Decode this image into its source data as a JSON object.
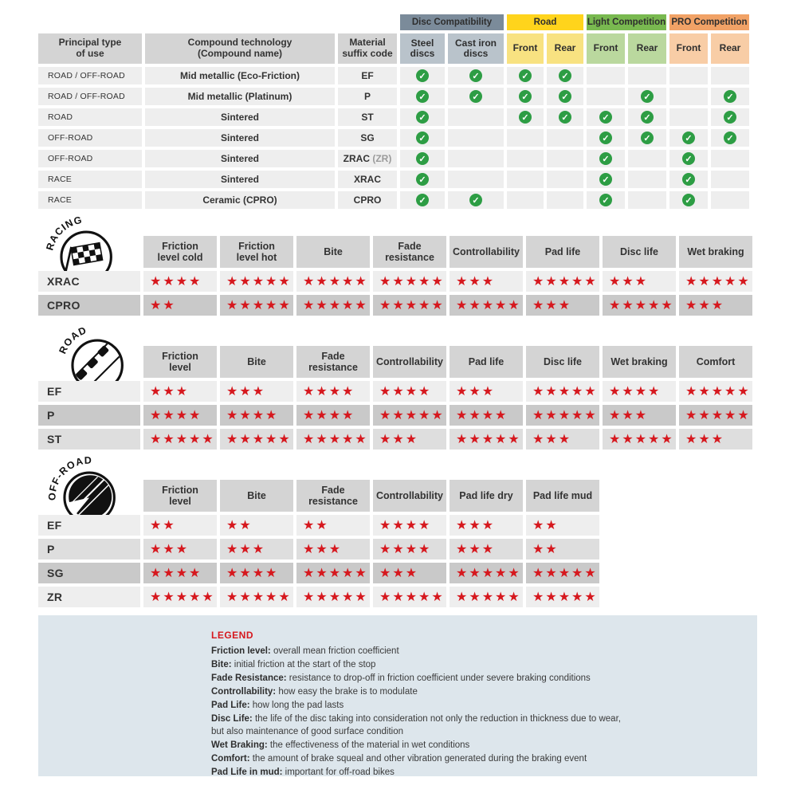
{
  "colors": {
    "check_green": "#2d9d44",
    "star_red": "#d6181e",
    "header_gray": "#d4d4d4",
    "legend_bg": "#dde6ec"
  },
  "compat_table": {
    "col_headers": [
      "Principal type\nof use",
      "Compound technology\n(Compound name)",
      "Material\nsuffix code"
    ],
    "groups": [
      {
        "label": "Disc Compatibility",
        "color": "#7b8b9a",
        "sub_color": "#b9c3cb",
        "cols": [
          "Steel\ndiscs",
          "Cast iron\ndiscs"
        ]
      },
      {
        "label": "Road",
        "color": "#ffd41c",
        "sub_color": "#f8e281",
        "cols": [
          "Front",
          "Rear"
        ]
      },
      {
        "label": "Light Competition",
        "color": "#79b950",
        "sub_color": "#bad89e",
        "cols": [
          "Front",
          "Rear"
        ]
      },
      {
        "label": "PRO Competition",
        "color": "#f1a266",
        "sub_color": "#f8cda6",
        "cols": [
          "Front",
          "Rear"
        ]
      }
    ],
    "rows": [
      {
        "use": "ROAD / OFF-ROAD",
        "compound": "Mid metallic (Eco-Friction)",
        "suffix": "EF",
        "suffix_note": "",
        "checks": [
          1,
          1,
          1,
          1,
          0,
          0,
          0,
          0
        ]
      },
      {
        "use": "ROAD / OFF-ROAD",
        "compound": "Mid metallic (Platinum)",
        "suffix": "P",
        "suffix_note": "",
        "checks": [
          1,
          1,
          1,
          1,
          0,
          1,
          0,
          1
        ]
      },
      {
        "use": "ROAD",
        "compound": "Sintered",
        "suffix": "ST",
        "suffix_note": "",
        "checks": [
          1,
          0,
          1,
          1,
          1,
          1,
          0,
          1
        ]
      },
      {
        "use": "OFF-ROAD",
        "compound": "Sintered",
        "suffix": "SG",
        "suffix_note": "",
        "checks": [
          1,
          0,
          0,
          0,
          1,
          1,
          1,
          1
        ]
      },
      {
        "use": "OFF-ROAD",
        "compound": "Sintered",
        "suffix": "ZRAC",
        "suffix_note": "(ZR)",
        "checks": [
          1,
          0,
          0,
          0,
          1,
          0,
          1,
          0
        ]
      },
      {
        "use": "RACE",
        "compound": "Sintered",
        "suffix": "XRAC",
        "suffix_note": "",
        "checks": [
          1,
          0,
          0,
          0,
          1,
          0,
          1,
          0
        ]
      },
      {
        "use": "RACE",
        "compound": "Ceramic (CPRO)",
        "suffix": "CPRO",
        "suffix_note": "",
        "checks": [
          1,
          1,
          0,
          0,
          1,
          0,
          1,
          0
        ]
      }
    ]
  },
  "sections": [
    {
      "id": "racing",
      "label": "RACING",
      "columns": [
        "Friction\nlevel cold",
        "Friction\nlevel hot",
        "Bite",
        "Fade\nresistance",
        "Controllability",
        "Pad life",
        "Disc life",
        "Wet braking"
      ],
      "rows": [
        {
          "code": "XRAC",
          "shade": "light",
          "ratings": [
            4,
            5,
            5,
            5,
            3,
            5,
            3,
            5
          ]
        },
        {
          "code": "CPRO",
          "shade": "dark",
          "ratings": [
            2,
            5,
            5,
            5,
            5,
            3,
            5,
            3
          ]
        }
      ]
    },
    {
      "id": "road",
      "label": "ROAD",
      "columns": [
        "Friction\nlevel",
        "Bite",
        "Fade\nresistance",
        "Controllability",
        "Pad life",
        "Disc life",
        "Wet braking",
        "Comfort"
      ],
      "rows": [
        {
          "code": "EF",
          "shade": "light",
          "ratings": [
            3,
            3,
            4,
            4,
            3,
            5,
            4,
            5
          ]
        },
        {
          "code": "P",
          "shade": "dark",
          "ratings": [
            4,
            4,
            4,
            5,
            4,
            5,
            3,
            5
          ]
        },
        {
          "code": "ST",
          "shade": "medium",
          "ratings": [
            5,
            5,
            5,
            3,
            5,
            3,
            5,
            3
          ]
        }
      ]
    },
    {
      "id": "offroad",
      "label": "OFF-ROAD",
      "columns": [
        "Friction\nlevel",
        "Bite",
        "Fade\nresistance",
        "Controllability",
        "Pad life dry",
        "Pad life mud"
      ],
      "rows": [
        {
          "code": "EF",
          "shade": "light",
          "ratings": [
            2,
            2,
            2,
            4,
            3,
            2
          ]
        },
        {
          "code": "P",
          "shade": "medium",
          "ratings": [
            3,
            3,
            3,
            4,
            3,
            2
          ]
        },
        {
          "code": "SG",
          "shade": "dark",
          "ratings": [
            4,
            4,
            5,
            3,
            5,
            5
          ]
        },
        {
          "code": "ZR",
          "shade": "light",
          "ratings": [
            5,
            5,
            5,
            5,
            5,
            5
          ]
        }
      ]
    }
  ],
  "legend": {
    "title": "LEGEND",
    "items": [
      {
        "term": "Friction level",
        "desc": "overall mean friction coefficient"
      },
      {
        "term": "Bite",
        "desc": "initial friction at the start of the stop"
      },
      {
        "term": "Fade Resistance",
        "desc": "resistance to drop-off in friction coefficient under severe braking conditions"
      },
      {
        "term": "Controllability",
        "desc": "how easy the brake is to modulate"
      },
      {
        "term": "Pad Life",
        "desc": "how long the pad lasts"
      },
      {
        "term": "Disc Life",
        "desc": "the life of the disc taking into consideration not only the reduction in thickness due to wear,"
      },
      {
        "term": "",
        "desc": "but also maintenance of good surface condition"
      },
      {
        "term": "Wet Braking",
        "desc": "the effectiveness of the material in wet conditions"
      },
      {
        "term": "Comfort",
        "desc": "the amount of brake squeal and other vibration generated during the braking event"
      },
      {
        "term": "Pad Life in mud",
        "desc": "important for off-road bikes"
      }
    ]
  }
}
